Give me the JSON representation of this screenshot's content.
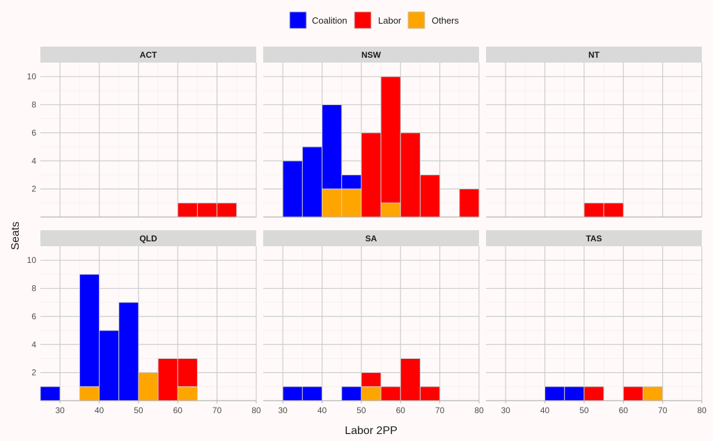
{
  "chart_data": {
    "type": "bar",
    "stacked": true,
    "xlabel": "Labor 2PP",
    "ylabel": "Seats",
    "xlim": [
      25,
      80
    ],
    "ylim": [
      0,
      11
    ],
    "x_ticks": [
      30,
      40,
      50,
      60,
      70,
      80
    ],
    "y_ticks": [
      2,
      4,
      6,
      8,
      10
    ],
    "bin_width": 5,
    "legend_position": "top",
    "grid": true,
    "series": [
      {
        "name": "Coalition",
        "color": "#0000ff"
      },
      {
        "name": "Labor",
        "color": "#ff0000"
      },
      {
        "name": "Others",
        "color": "#ffa500"
      }
    ],
    "facets": [
      {
        "label": "ACT",
        "bins": [
          {
            "x": 62.5,
            "Labor": 1
          },
          {
            "x": 67.5,
            "Labor": 1
          },
          {
            "x": 72.5,
            "Labor": 1
          }
        ]
      },
      {
        "label": "NSW",
        "bins": [
          {
            "x": 32.5,
            "Coalition": 4
          },
          {
            "x": 37.5,
            "Coalition": 5
          },
          {
            "x": 42.5,
            "Others": 2,
            "Coalition": 6
          },
          {
            "x": 47.5,
            "Others": 2,
            "Coalition": 1
          },
          {
            "x": 52.5,
            "Labor": 6
          },
          {
            "x": 57.5,
            "Others": 1,
            "Labor": 9
          },
          {
            "x": 62.5,
            "Labor": 6
          },
          {
            "x": 67.5,
            "Labor": 3
          },
          {
            "x": 77.5,
            "Labor": 2
          }
        ]
      },
      {
        "label": "NT",
        "bins": [
          {
            "x": 52.5,
            "Labor": 1
          },
          {
            "x": 57.5,
            "Labor": 1
          }
        ]
      },
      {
        "label": "QLD",
        "bins": [
          {
            "x": 27.5,
            "Coalition": 1
          },
          {
            "x": 37.5,
            "Others": 1,
            "Coalition": 8
          },
          {
            "x": 42.5,
            "Coalition": 5
          },
          {
            "x": 47.5,
            "Coalition": 7
          },
          {
            "x": 52.5,
            "Others": 2
          },
          {
            "x": 57.5,
            "Labor": 3
          },
          {
            "x": 62.5,
            "Others": 1,
            "Labor": 2
          }
        ]
      },
      {
        "label": "SA",
        "bins": [
          {
            "x": 32.5,
            "Coalition": 1
          },
          {
            "x": 37.5,
            "Coalition": 1
          },
          {
            "x": 47.5,
            "Coalition": 1
          },
          {
            "x": 52.5,
            "Others": 1,
            "Labor": 1
          },
          {
            "x": 57.5,
            "Labor": 1
          },
          {
            "x": 62.5,
            "Labor": 3
          },
          {
            "x": 67.5,
            "Labor": 1
          }
        ]
      },
      {
        "label": "TAS",
        "bins": [
          {
            "x": 42.5,
            "Coalition": 1
          },
          {
            "x": 47.5,
            "Coalition": 1
          },
          {
            "x": 52.5,
            "Labor": 1
          },
          {
            "x": 62.5,
            "Labor": 1
          },
          {
            "x": 67.5,
            "Others": 1
          }
        ]
      }
    ]
  }
}
